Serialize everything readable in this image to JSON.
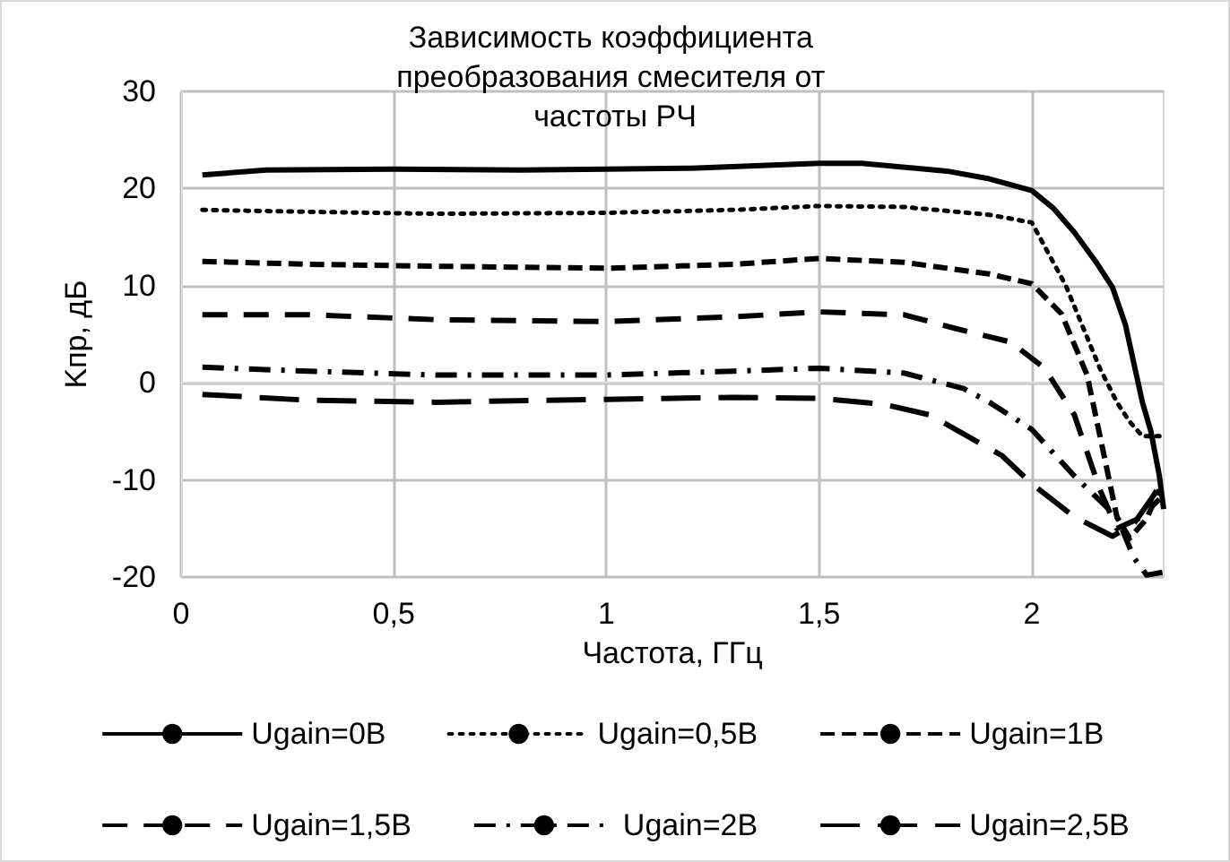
{
  "chart_data": {
    "type": "line",
    "title": "Зависимость коэффициента преобразования смесителя от частоты РЧ",
    "xlabel": "Частота, ГГц",
    "ylabel": "Kпр, дБ",
    "xlim": [
      0,
      2.31
    ],
    "xticks": [
      {
        "value": 0,
        "label": "0"
      },
      {
        "value": 0.5,
        "label": "0,5"
      },
      {
        "value": 1,
        "label": "1"
      },
      {
        "value": 1.5,
        "label": "1,5"
      },
      {
        "value": 2,
        "label": "2"
      }
    ],
    "ylim": [
      -20,
      30
    ],
    "yticks": [
      -20,
      -10,
      0,
      10,
      20,
      30
    ],
    "grid": true,
    "legend": "bottom",
    "marker": "none",
    "series": [
      {
        "name": "Ugain=0В",
        "color": "#000000",
        "line_style": "solid",
        "x": [
          0.05,
          0.2,
          0.5,
          0.8,
          1.0,
          1.2,
          1.5,
          1.6,
          1.8,
          1.9,
          2.0,
          2.05,
          2.1,
          2.15,
          2.19,
          2.22,
          2.26,
          2.28,
          2.3,
          2.31
        ],
        "values": [
          21.4,
          21.9,
          22.0,
          21.9,
          22.0,
          22.1,
          22.6,
          22.6,
          21.8,
          21.0,
          19.8,
          18.0,
          15.5,
          12.5,
          9.8,
          6.0,
          -2.0,
          -5.0,
          -9.6,
          -13.0
        ]
      },
      {
        "name": "Ugain=0,5В",
        "color": "#000000",
        "line_style": "dotted",
        "x": [
          0.05,
          0.3,
          0.6,
          1.0,
          1.3,
          1.5,
          1.7,
          1.9,
          2.0,
          2.08,
          2.16,
          2.2,
          2.23,
          2.26,
          2.3
        ],
        "values": [
          17.8,
          17.6,
          17.4,
          17.5,
          17.8,
          18.2,
          18.1,
          17.3,
          16.5,
          10.0,
          1.5,
          -2.0,
          -4.0,
          -5.5,
          -5.5
        ]
      },
      {
        "name": "Ugain=1В",
        "color": "#000000",
        "line_style": "dashed",
        "x": [
          0.05,
          0.3,
          0.6,
          1.0,
          1.3,
          1.5,
          1.7,
          1.9,
          2.0,
          2.07,
          2.13,
          2.17,
          2.2,
          2.23,
          2.27,
          2.3
        ],
        "values": [
          12.5,
          12.2,
          12.0,
          11.8,
          12.2,
          12.8,
          12.4,
          11.2,
          10.2,
          7.1,
          0.8,
          -7.5,
          -13.8,
          -16.0,
          -14.0,
          -11.0
        ]
      },
      {
        "name": "Ugain=1,5В",
        "color": "#000000",
        "line_style": "dashed",
        "x": [
          0.05,
          0.3,
          0.6,
          1.0,
          1.3,
          1.5,
          1.7,
          1.82,
          1.95,
          2.03,
          2.1,
          2.16,
          2.2,
          2.25,
          2.3
        ],
        "values": [
          7.0,
          7.0,
          6.5,
          6.3,
          6.8,
          7.3,
          7.0,
          5.6,
          4.2,
          1.5,
          -3.3,
          -11.0,
          -15.0,
          -14.0,
          -12.0
        ]
      },
      {
        "name": "Ugain=2В",
        "color": "#000000",
        "line_style": "dashed",
        "x": [
          0.05,
          0.3,
          0.6,
          1.0,
          1.3,
          1.5,
          1.7,
          1.84,
          1.9,
          2.0,
          2.1,
          2.2,
          2.24,
          2.27,
          2.31
        ],
        "values": [
          1.6,
          1.2,
          0.8,
          0.8,
          1.2,
          1.5,
          1.0,
          -0.6,
          -2.0,
          -4.8,
          -9.6,
          -13.8,
          -18.0,
          -19.8,
          -19.5
        ]
      },
      {
        "name": "Ugain=2,5В",
        "color": "#000000",
        "line_style": "dashed",
        "x": [
          0.05,
          0.3,
          0.6,
          1.0,
          1.3,
          1.5,
          1.65,
          1.76,
          1.93,
          2.0,
          2.1,
          2.19,
          2.24,
          2.28,
          2.31
        ],
        "values": [
          -1.2,
          -1.8,
          -2.0,
          -1.7,
          -1.5,
          -1.6,
          -2.2,
          -3.3,
          -7.5,
          -10.4,
          -13.8,
          -15.8,
          -14.5,
          -12.0,
          -10.0
        ]
      }
    ]
  }
}
